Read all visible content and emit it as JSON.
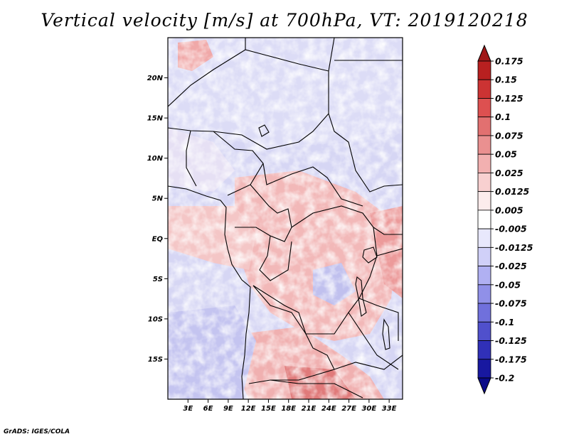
{
  "title": "Vertical velocity [m/s] at 700hPa, VT: 2019120218",
  "credit": "GrADS: IGES/COLA",
  "map": {
    "lon_range": [
      0,
      35
    ],
    "lat_range": [
      -20,
      25
    ],
    "lat_ticks": [
      {
        "value": 20,
        "label": "20N"
      },
      {
        "value": 15,
        "label": "15N"
      },
      {
        "value": 10,
        "label": "10N"
      },
      {
        "value": 5,
        "label": "5N"
      },
      {
        "value": 0,
        "label": "EQ"
      },
      {
        "value": -5,
        "label": "5S"
      },
      {
        "value": -10,
        "label": "10S"
      },
      {
        "value": -15,
        "label": "15S"
      }
    ],
    "lon_ticks": [
      {
        "value": 3,
        "label": "3E"
      },
      {
        "value": 6,
        "label": "6E"
      },
      {
        "value": 9,
        "label": "9E"
      },
      {
        "value": 12,
        "label": "12E"
      },
      {
        "value": 15,
        "label": "15E"
      },
      {
        "value": 18,
        "label": "18E"
      },
      {
        "value": 21,
        "label": "21E"
      },
      {
        "value": 24,
        "label": "24E"
      },
      {
        "value": 27,
        "label": "27E"
      },
      {
        "value": 30,
        "label": "30E"
      },
      {
        "value": 33,
        "label": "33E"
      }
    ]
  },
  "colorbar": {
    "labels": [
      "0.175",
      "0.15",
      "0.125",
      "0.1",
      "0.075",
      "0.05",
      "0.025",
      "0.0125",
      "0.005",
      "-0.005",
      "-0.0125",
      "-0.025",
      "-0.05",
      "-0.075",
      "-0.1",
      "-0.125",
      "-0.175",
      "-0.2"
    ],
    "colors": [
      "#a01818",
      "#b82020",
      "#cc3333",
      "#dd5050",
      "#e27070",
      "#ea9090",
      "#f2b0b0",
      "#f8d0d0",
      "#fcecec",
      "#ffffff",
      "#e8e8fc",
      "#d0d0f8",
      "#b0b0f2",
      "#9090e8",
      "#7070dc",
      "#5050cc",
      "#3030b8",
      "#1818a0",
      "#0a0a88"
    ]
  }
}
